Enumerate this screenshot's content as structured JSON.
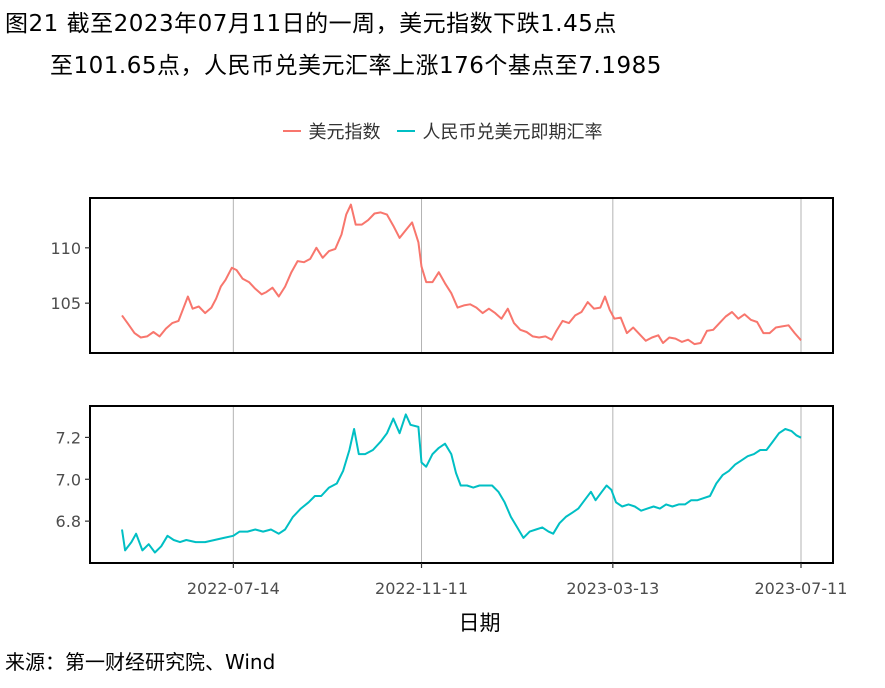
{
  "title": {
    "line1": "图21  截至2023年07月11日的一周，美元指数下跌1.45点",
    "line2": "至101.65点，人民币兑美元汇率上涨176个基点至7.1985"
  },
  "source": "来源：第一财经研究院、Wind",
  "colors": {
    "usd": "#F8766D",
    "cny": "#00BFC4"
  },
  "chart_data": {
    "type": "line",
    "xlabel": "日期",
    "x_ticks": [
      "2022-07-14",
      "2022-11-11",
      "2023-03-13",
      "2023-07-11"
    ],
    "x_range": [
      "2022-05-04",
      "2023-07-11"
    ],
    "legend_position": "top",
    "panels": [
      {
        "series_name": "美元指数",
        "color": "#F8766D",
        "ylim": [
          100.5,
          114.5
        ],
        "y_ticks": [
          105,
          110
        ],
        "points": [
          [
            "2022-05-04",
            103.9
          ],
          [
            "2022-05-08",
            103.1
          ],
          [
            "2022-05-12",
            102.3
          ],
          [
            "2022-05-16",
            101.9
          ],
          [
            "2022-05-20",
            102.0
          ],
          [
            "2022-05-24",
            102.4
          ],
          [
            "2022-05-28",
            102.0
          ],
          [
            "2022-06-01",
            102.7
          ],
          [
            "2022-06-05",
            103.2
          ],
          [
            "2022-06-09",
            103.4
          ],
          [
            "2022-06-12",
            104.5
          ],
          [
            "2022-06-15",
            105.6
          ],
          [
            "2022-06-18",
            104.5
          ],
          [
            "2022-06-22",
            104.7
          ],
          [
            "2022-06-26",
            104.1
          ],
          [
            "2022-06-30",
            104.6
          ],
          [
            "2022-07-03",
            105.4
          ],
          [
            "2022-07-06",
            106.5
          ],
          [
            "2022-07-09",
            107.1
          ],
          [
            "2022-07-13",
            108.2
          ],
          [
            "2022-07-16",
            108.0
          ],
          [
            "2022-07-20",
            107.2
          ],
          [
            "2022-07-24",
            106.9
          ],
          [
            "2022-07-28",
            106.3
          ],
          [
            "2022-08-01",
            105.8
          ],
          [
            "2022-08-04",
            106.0
          ],
          [
            "2022-08-08",
            106.4
          ],
          [
            "2022-08-12",
            105.6
          ],
          [
            "2022-08-16",
            106.5
          ],
          [
            "2022-08-20",
            107.8
          ],
          [
            "2022-08-24",
            108.8
          ],
          [
            "2022-08-28",
            108.7
          ],
          [
            "2022-09-01",
            109.0
          ],
          [
            "2022-09-05",
            110.0
          ],
          [
            "2022-09-09",
            109.1
          ],
          [
            "2022-09-13",
            109.7
          ],
          [
            "2022-09-17",
            109.9
          ],
          [
            "2022-09-21",
            111.2
          ],
          [
            "2022-09-24",
            113.0
          ],
          [
            "2022-09-27",
            113.9
          ],
          [
            "2022-09-30",
            112.1
          ],
          [
            "2022-10-04",
            112.1
          ],
          [
            "2022-10-08",
            112.5
          ],
          [
            "2022-10-12",
            113.1
          ],
          [
            "2022-10-16",
            113.2
          ],
          [
            "2022-10-20",
            113.0
          ],
          [
            "2022-10-24",
            112.0
          ],
          [
            "2022-10-28",
            110.9
          ],
          [
            "2022-11-01",
            111.6
          ],
          [
            "2022-11-05",
            112.3
          ],
          [
            "2022-11-09",
            110.5
          ],
          [
            "2022-11-11",
            108.3
          ],
          [
            "2022-11-14",
            106.9
          ],
          [
            "2022-11-18",
            106.9
          ],
          [
            "2022-11-22",
            107.8
          ],
          [
            "2022-11-26",
            106.8
          ],
          [
            "2022-11-30",
            105.9
          ],
          [
            "2022-12-04",
            104.6
          ],
          [
            "2022-12-08",
            104.8
          ],
          [
            "2022-12-12",
            104.9
          ],
          [
            "2022-12-16",
            104.6
          ],
          [
            "2022-12-20",
            104.1
          ],
          [
            "2022-12-24",
            104.5
          ],
          [
            "2022-12-28",
            104.1
          ],
          [
            "2023-01-01",
            103.6
          ],
          [
            "2023-01-05",
            104.5
          ],
          [
            "2023-01-09",
            103.2
          ],
          [
            "2023-01-13",
            102.6
          ],
          [
            "2023-01-17",
            102.4
          ],
          [
            "2023-01-21",
            102.0
          ],
          [
            "2023-01-25",
            101.9
          ],
          [
            "2023-01-29",
            102.0
          ],
          [
            "2023-02-02",
            101.7
          ],
          [
            "2023-02-05",
            102.5
          ],
          [
            "2023-02-09",
            103.4
          ],
          [
            "2023-02-13",
            103.2
          ],
          [
            "2023-02-17",
            103.9
          ],
          [
            "2023-02-21",
            104.2
          ],
          [
            "2023-02-25",
            105.1
          ],
          [
            "2023-03-01",
            104.5
          ],
          [
            "2023-03-05",
            104.6
          ],
          [
            "2023-03-08",
            105.6
          ],
          [
            "2023-03-11",
            104.4
          ],
          [
            "2023-03-14",
            103.6
          ],
          [
            "2023-03-18",
            103.7
          ],
          [
            "2023-03-22",
            102.3
          ],
          [
            "2023-03-26",
            102.8
          ],
          [
            "2023-03-30",
            102.2
          ],
          [
            "2023-04-03",
            101.6
          ],
          [
            "2023-04-07",
            101.9
          ],
          [
            "2023-04-11",
            102.1
          ],
          [
            "2023-04-14",
            101.4
          ],
          [
            "2023-04-18",
            101.9
          ],
          [
            "2023-04-22",
            101.8
          ],
          [
            "2023-04-26",
            101.5
          ],
          [
            "2023-04-30",
            101.7
          ],
          [
            "2023-05-04",
            101.3
          ],
          [
            "2023-05-08",
            101.4
          ],
          [
            "2023-05-12",
            102.5
          ],
          [
            "2023-05-16",
            102.6
          ],
          [
            "2023-05-20",
            103.2
          ],
          [
            "2023-05-24",
            103.8
          ],
          [
            "2023-05-28",
            104.2
          ],
          [
            "2023-06-01",
            103.6
          ],
          [
            "2023-06-05",
            104.0
          ],
          [
            "2023-06-09",
            103.5
          ],
          [
            "2023-06-13",
            103.3
          ],
          [
            "2023-06-17",
            102.3
          ],
          [
            "2023-06-21",
            102.3
          ],
          [
            "2023-06-25",
            102.8
          ],
          [
            "2023-06-29",
            102.9
          ],
          [
            "2023-07-03",
            103.0
          ],
          [
            "2023-07-07",
            102.3
          ],
          [
            "2023-07-11",
            101.65
          ]
        ]
      },
      {
        "series_name": "人民币兑美元即期汇率",
        "color": "#00BFC4",
        "ylim": [
          6.6,
          7.35
        ],
        "y_ticks": [
          6.8,
          7.0,
          7.2
        ],
        "points": [
          [
            "2022-05-04",
            6.76
          ],
          [
            "2022-05-06",
            6.66
          ],
          [
            "2022-05-10",
            6.7
          ],
          [
            "2022-05-13",
            6.74
          ],
          [
            "2022-05-17",
            6.66
          ],
          [
            "2022-05-21",
            6.69
          ],
          [
            "2022-05-25",
            6.65
          ],
          [
            "2022-05-29",
            6.68
          ],
          [
            "2022-06-02",
            6.73
          ],
          [
            "2022-06-06",
            6.71
          ],
          [
            "2022-06-10",
            6.7
          ],
          [
            "2022-06-14",
            6.71
          ],
          [
            "2022-06-20",
            6.7
          ],
          [
            "2022-06-26",
            6.7
          ],
          [
            "2022-07-02",
            6.71
          ],
          [
            "2022-07-08",
            6.72
          ],
          [
            "2022-07-14",
            6.73
          ],
          [
            "2022-07-18",
            6.75
          ],
          [
            "2022-07-23",
            6.75
          ],
          [
            "2022-07-28",
            6.76
          ],
          [
            "2022-08-02",
            6.75
          ],
          [
            "2022-08-07",
            6.76
          ],
          [
            "2022-08-12",
            6.74
          ],
          [
            "2022-08-16",
            6.76
          ],
          [
            "2022-08-21",
            6.82
          ],
          [
            "2022-08-26",
            6.86
          ],
          [
            "2022-08-31",
            6.89
          ],
          [
            "2022-09-04",
            6.92
          ],
          [
            "2022-09-08",
            6.92
          ],
          [
            "2022-09-13",
            6.96
          ],
          [
            "2022-09-18",
            6.98
          ],
          [
            "2022-09-22",
            7.04
          ],
          [
            "2022-09-26",
            7.14
          ],
          [
            "2022-09-29",
            7.24
          ],
          [
            "2022-10-02",
            7.12
          ],
          [
            "2022-10-06",
            7.12
          ],
          [
            "2022-10-11",
            7.14
          ],
          [
            "2022-10-16",
            7.18
          ],
          [
            "2022-10-20",
            7.22
          ],
          [
            "2022-10-24",
            7.29
          ],
          [
            "2022-10-28",
            7.22
          ],
          [
            "2022-11-01",
            7.31
          ],
          [
            "2022-11-04",
            7.26
          ],
          [
            "2022-11-09",
            7.25
          ],
          [
            "2022-11-11",
            7.08
          ],
          [
            "2022-11-14",
            7.06
          ],
          [
            "2022-11-18",
            7.12
          ],
          [
            "2022-11-22",
            7.15
          ],
          [
            "2022-11-26",
            7.17
          ],
          [
            "2022-11-30",
            7.12
          ],
          [
            "2022-12-03",
            7.03
          ],
          [
            "2022-12-06",
            6.97
          ],
          [
            "2022-12-10",
            6.97
          ],
          [
            "2022-12-14",
            6.96
          ],
          [
            "2022-12-18",
            6.97
          ],
          [
            "2022-12-22",
            6.97
          ],
          [
            "2022-12-26",
            6.97
          ],
          [
            "2022-12-30",
            6.94
          ],
          [
            "2023-01-03",
            6.89
          ],
          [
            "2023-01-07",
            6.82
          ],
          [
            "2023-01-11",
            6.77
          ],
          [
            "2023-01-15",
            6.72
          ],
          [
            "2023-01-19",
            6.75
          ],
          [
            "2023-01-23",
            6.76
          ],
          [
            "2023-01-27",
            6.77
          ],
          [
            "2023-01-31",
            6.75
          ],
          [
            "2023-02-03",
            6.74
          ],
          [
            "2023-02-07",
            6.79
          ],
          [
            "2023-02-11",
            6.82
          ],
          [
            "2023-02-15",
            6.84
          ],
          [
            "2023-02-19",
            6.86
          ],
          [
            "2023-02-23",
            6.9
          ],
          [
            "2023-02-27",
            6.94
          ],
          [
            "2023-03-02",
            6.9
          ],
          [
            "2023-03-06",
            6.94
          ],
          [
            "2023-03-09",
            6.97
          ],
          [
            "2023-03-12",
            6.95
          ],
          [
            "2023-03-15",
            6.89
          ],
          [
            "2023-03-19",
            6.87
          ],
          [
            "2023-03-23",
            6.88
          ],
          [
            "2023-03-27",
            6.87
          ],
          [
            "2023-03-31",
            6.85
          ],
          [
            "2023-04-04",
            6.86
          ],
          [
            "2023-04-08",
            6.87
          ],
          [
            "2023-04-12",
            6.86
          ],
          [
            "2023-04-16",
            6.88
          ],
          [
            "2023-04-20",
            6.87
          ],
          [
            "2023-04-24",
            6.88
          ],
          [
            "2023-04-28",
            6.88
          ],
          [
            "2023-05-02",
            6.9
          ],
          [
            "2023-05-06",
            6.9
          ],
          [
            "2023-05-10",
            6.91
          ],
          [
            "2023-05-14",
            6.92
          ],
          [
            "2023-05-18",
            6.98
          ],
          [
            "2023-05-22",
            7.02
          ],
          [
            "2023-05-26",
            7.04
          ],
          [
            "2023-05-30",
            7.07
          ],
          [
            "2023-06-03",
            7.09
          ],
          [
            "2023-06-07",
            7.11
          ],
          [
            "2023-06-11",
            7.12
          ],
          [
            "2023-06-15",
            7.14
          ],
          [
            "2023-06-19",
            7.14
          ],
          [
            "2023-06-23",
            7.18
          ],
          [
            "2023-06-27",
            7.22
          ],
          [
            "2023-07-01",
            7.24
          ],
          [
            "2023-07-05",
            7.23
          ],
          [
            "2023-07-08",
            7.21
          ],
          [
            "2023-07-11",
            7.1985
          ]
        ]
      }
    ]
  }
}
